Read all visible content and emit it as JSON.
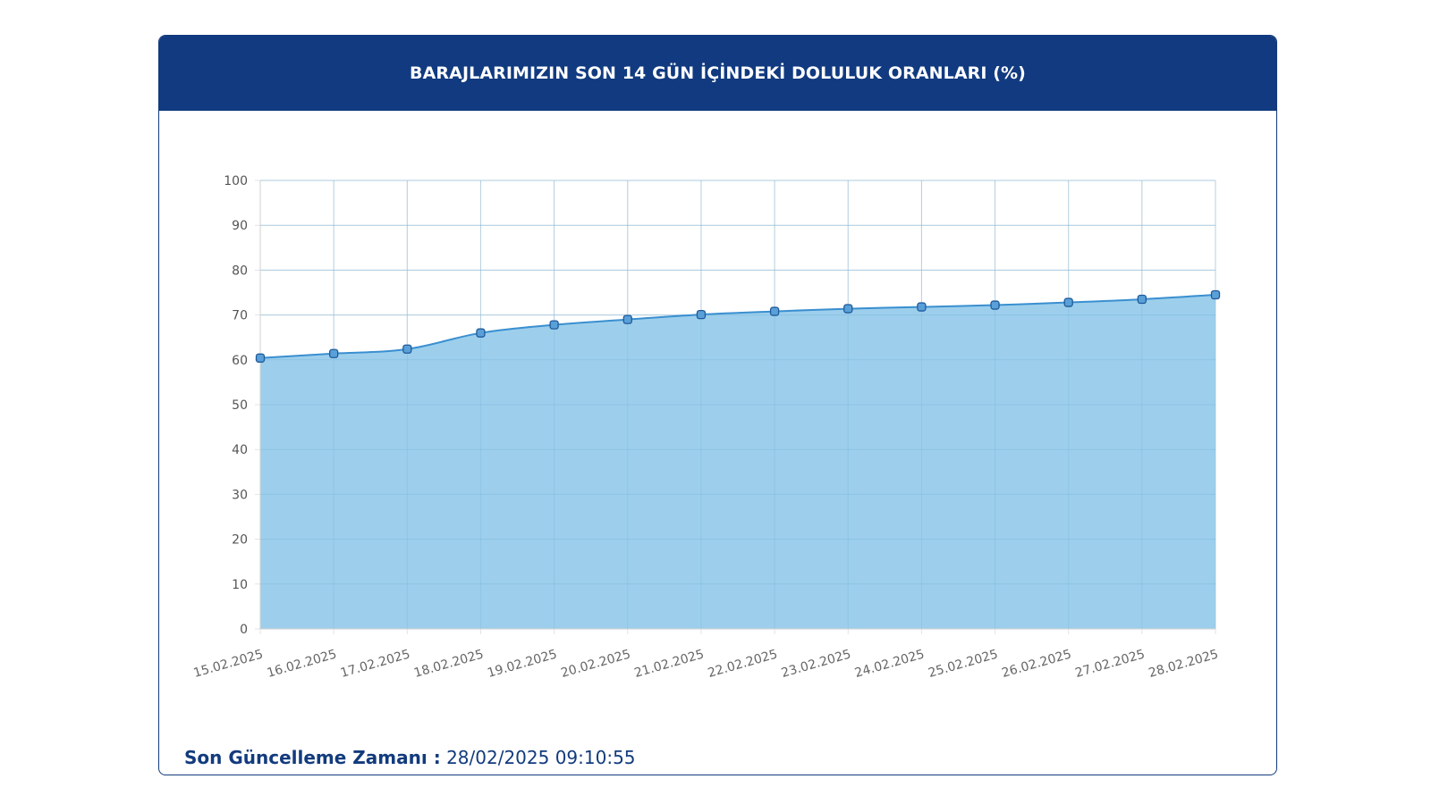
{
  "header": {
    "title": "BARAJLARIMIZIN SON 14 GÜN İÇİNDEKİ DOLULUK ORANLARI (%)"
  },
  "footer": {
    "label": "Son Güncelleme Zamanı :",
    "value": "28/02/2025 09:10:55"
  },
  "colors": {
    "header_bg": "#113a80",
    "line": "#3a8fd0",
    "area_fill": "#9dcfec",
    "marker_fill": "#5aa0d8",
    "marker_stroke": "#1f5a9a",
    "text_dark": "#123b7d"
  },
  "chart_data": {
    "type": "area",
    "title": "BARAJLARIMIZIN SON 14 GÜN İÇİNDEKİ DOLULUK ORANLARI (%)",
    "xlabel": "",
    "ylabel": "",
    "ylim": [
      0,
      100
    ],
    "yticks": [
      0,
      10,
      20,
      30,
      40,
      50,
      60,
      70,
      80,
      90,
      100
    ],
    "grid": true,
    "legend": "none",
    "categories": [
      "15.02.2025",
      "16.02.2025",
      "17.02.2025",
      "18.02.2025",
      "19.02.2025",
      "20.02.2025",
      "21.02.2025",
      "22.02.2025",
      "23.02.2025",
      "24.02.2025",
      "25.02.2025",
      "26.02.2025",
      "27.02.2025",
      "28.02.2025"
    ],
    "series": [
      {
        "values": [
          60.4,
          61.4,
          62.4,
          66.0,
          67.8,
          69.0,
          70.1,
          70.8,
          71.4,
          71.8,
          72.2,
          72.8,
          73.5,
          74.5
        ]
      }
    ]
  }
}
